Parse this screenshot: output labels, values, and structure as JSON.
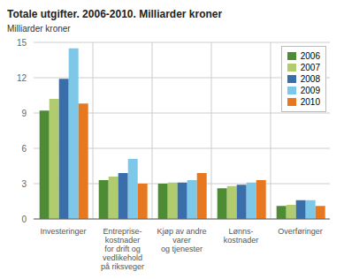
{
  "chart_data": {
    "type": "bar",
    "title": "Totale utgifter. 2006-2010. Milliarder kroner",
    "ylabel": "Milliarder kroner",
    "categories": [
      "Investeringer",
      "Entreprise-\nkostnader\nfor drift og\nvedlikehold\npå riksveger",
      "Kjøp av andre\nvarer\nog tjenester",
      "Lønns-\nkostnader",
      "Overføringer"
    ],
    "series": [
      {
        "name": "2006",
        "color": "#4d8b34",
        "values": [
          9.2,
          3.3,
          3.0,
          2.6,
          1.1
        ]
      },
      {
        "name": "2007",
        "color": "#b0cc6e",
        "values": [
          10.2,
          3.6,
          3.1,
          2.8,
          1.2
        ]
      },
      {
        "name": "2008",
        "color": "#3a6eab",
        "values": [
          11.9,
          3.9,
          3.1,
          2.9,
          1.6
        ]
      },
      {
        "name": "2009",
        "color": "#7dc8e8",
        "values": [
          14.5,
          5.1,
          3.3,
          3.1,
          1.6
        ]
      },
      {
        "name": "2010",
        "color": "#e87820",
        "values": [
          9.8,
          3.0,
          3.9,
          3.3,
          1.1
        ]
      }
    ],
    "ylim": [
      0,
      15
    ],
    "yticks": [
      0,
      3,
      6,
      9,
      12,
      15
    ],
    "grid": true,
    "legend": "upper right"
  }
}
